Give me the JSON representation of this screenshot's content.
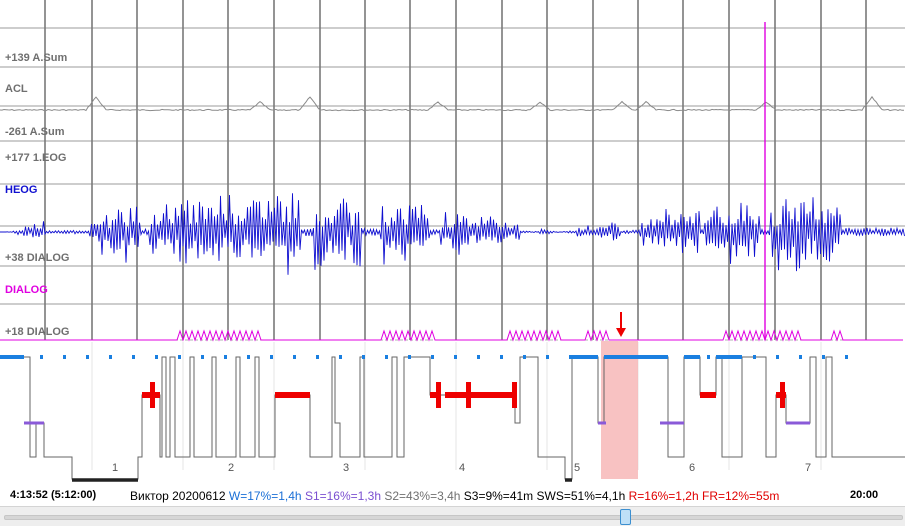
{
  "channels": [
    {
      "id": "acl-max",
      "label": "+139 A.Sum",
      "color": "#6f6f6f"
    },
    {
      "id": "acl",
      "label": "ACL",
      "color": "#6f6f6f"
    },
    {
      "id": "acl-min",
      "label": "-261 A.Sum",
      "color": "#6f6f6f"
    },
    {
      "id": "heog-max",
      "label": "+177 1.EOG",
      "color": "#6f6f6f"
    },
    {
      "id": "heog",
      "label": "HEOG",
      "color": "#1010d0"
    },
    {
      "id": "dialog-max",
      "label": "+38 DIALOG",
      "color": "#6f6f6f"
    },
    {
      "id": "dialog",
      "label": "DIALOG",
      "color": "#e000e0"
    },
    {
      "id": "dialog-min",
      "label": "+18 DIALOG",
      "color": "#6f6f6f"
    }
  ],
  "hypnogram": {
    "cycle_numbers": [
      "1",
      "2",
      "3",
      "4",
      "5",
      "6",
      "7"
    ]
  },
  "footer": {
    "time_start": "4:13:52 (5:12:00)",
    "time_end": "20:00",
    "summary_name": "Виктор 20200612",
    "stats": [
      {
        "text": "W=17%=1,4h",
        "color": "#1a6fd6"
      },
      {
        "text": "S1=16%=1,3h",
        "color": "#7a4fd0"
      },
      {
        "text": "S2=43%=3,4h",
        "color": "#707070"
      },
      {
        "text": "S3=9%=41m",
        "color": "#000000"
      },
      {
        "text": "SWS=51%=4,1h",
        "color": "#000000"
      },
      {
        "text": "R=16%=1,2h",
        "color": "#e00000"
      },
      {
        "text": "FR=12%=55m",
        "color": "#e00000"
      }
    ]
  },
  "colors": {
    "grid": "#5a5a5a",
    "acl_trace": "#8a8a8a",
    "heog_trace": "#1010d0",
    "dialog_trace": "#e000e0",
    "wake": "#1a7fe0",
    "s1": "#8a5ad8",
    "rem": "#ee0000",
    "selection": "#f7b7b7",
    "marker": "#ee0000"
  }
}
